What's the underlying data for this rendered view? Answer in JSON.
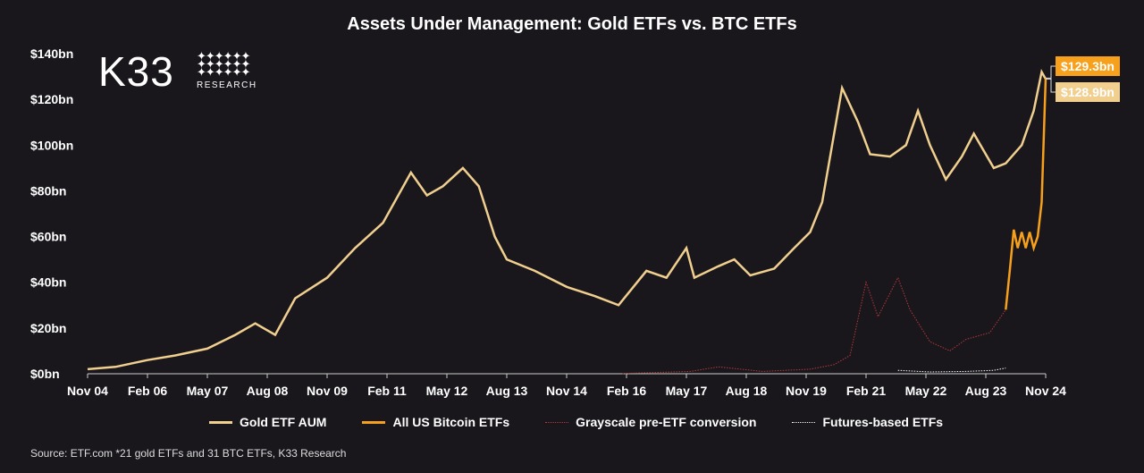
{
  "title": "Assets Under Management: Gold ETFs vs. BTC ETFs",
  "logo": {
    "text": "K33",
    "sub": "RESEARCH"
  },
  "source": "Source: ETF.com *21 gold ETFs and 31 BTC ETFs, K33 Research",
  "chart_data": {
    "type": "line",
    "title": "Assets Under Management: Gold ETFs vs. BTC ETFs",
    "ylim": [
      0,
      140
    ],
    "yticks": [
      "$0bn",
      "$20bn",
      "$40bn",
      "$60bn",
      "$80bn",
      "$100bn",
      "$120bn",
      "$140bn"
    ],
    "xticks": [
      "Nov 04",
      "Feb 06",
      "May 07",
      "Aug 08",
      "Nov 09",
      "Feb 11",
      "May 12",
      "Aug 13",
      "Nov 14",
      "Feb 16",
      "May 17",
      "Aug 18",
      "Nov 19",
      "Feb 21",
      "May 22",
      "Aug 23",
      "Nov 24"
    ],
    "xrange": [
      "2004-11",
      "2024-11"
    ],
    "legend_position": "bottom",
    "grid": false,
    "series": [
      {
        "name": "Gold ETF AUM",
        "color": "#f0cf8f",
        "style": "solid",
        "end_label": "$128.9bn",
        "points": [
          [
            "2004-11",
            2
          ],
          [
            "2005-06",
            3
          ],
          [
            "2006-02",
            6
          ],
          [
            "2006-09",
            8
          ],
          [
            "2007-05",
            11
          ],
          [
            "2007-12",
            17
          ],
          [
            "2008-05",
            22
          ],
          [
            "2008-10",
            17
          ],
          [
            "2009-03",
            33
          ],
          [
            "2009-11",
            42
          ],
          [
            "2010-06",
            55
          ],
          [
            "2011-01",
            66
          ],
          [
            "2011-08",
            88
          ],
          [
            "2011-12",
            78
          ],
          [
            "2012-04",
            82
          ],
          [
            "2012-09",
            90
          ],
          [
            "2013-01",
            82
          ],
          [
            "2013-05",
            60
          ],
          [
            "2013-08",
            50
          ],
          [
            "2014-03",
            45
          ],
          [
            "2014-11",
            38
          ],
          [
            "2015-06",
            34
          ],
          [
            "2015-12",
            30
          ],
          [
            "2016-07",
            45
          ],
          [
            "2016-12",
            42
          ],
          [
            "2017-05",
            55
          ],
          [
            "2017-07",
            42
          ],
          [
            "2018-01",
            47
          ],
          [
            "2018-05",
            50
          ],
          [
            "2018-09",
            43
          ],
          [
            "2019-03",
            46
          ],
          [
            "2019-08",
            55
          ],
          [
            "2019-12",
            62
          ],
          [
            "2020-03",
            75
          ],
          [
            "2020-08",
            125
          ],
          [
            "2020-12",
            110
          ],
          [
            "2021-03",
            96
          ],
          [
            "2021-08",
            95
          ],
          [
            "2021-12",
            100
          ],
          [
            "2022-03",
            115
          ],
          [
            "2022-06",
            100
          ],
          [
            "2022-10",
            85
          ],
          [
            "2023-02",
            95
          ],
          [
            "2023-05",
            105
          ],
          [
            "2023-10",
            90
          ],
          [
            "2024-01",
            92
          ],
          [
            "2024-05",
            100
          ],
          [
            "2024-08",
            115
          ],
          [
            "2024-10",
            132
          ],
          [
            "2024-11",
            128.9
          ]
        ]
      },
      {
        "name": "All US Bitcoin ETFs",
        "color": "#f7a01c",
        "style": "solid",
        "end_label": "$129.3bn",
        "points": [
          [
            "2024-01",
            28
          ],
          [
            "2024-02",
            45
          ],
          [
            "2024-03",
            63
          ],
          [
            "2024-04",
            55
          ],
          [
            "2024-05",
            62
          ],
          [
            "2024-06",
            55
          ],
          [
            "2024-07",
            62
          ],
          [
            "2024-08",
            55
          ],
          [
            "2024-09",
            60
          ],
          [
            "2024-10",
            75
          ],
          [
            "2024-11",
            129.3
          ]
        ]
      },
      {
        "name": "Grayscale pre-ETF conversion",
        "color": "#b33a3a",
        "style": "dotted",
        "points": [
          [
            "2016-01",
            0.1
          ],
          [
            "2017-06",
            1
          ],
          [
            "2018-01",
            3
          ],
          [
            "2018-12",
            1
          ],
          [
            "2019-12",
            2
          ],
          [
            "2020-06",
            4
          ],
          [
            "2020-10",
            8
          ],
          [
            "2021-02",
            40
          ],
          [
            "2021-05",
            25
          ],
          [
            "2021-10",
            42
          ],
          [
            "2022-01",
            28
          ],
          [
            "2022-06",
            14
          ],
          [
            "2022-11",
            10
          ],
          [
            "2023-03",
            15
          ],
          [
            "2023-09",
            18
          ],
          [
            "2024-01",
            28
          ]
        ]
      },
      {
        "name": "Futures-based ETFs",
        "color": "#ffffff",
        "style": "dotted",
        "points": [
          [
            "2021-10",
            1.5
          ],
          [
            "2022-06",
            0.8
          ],
          [
            "2023-03",
            1
          ],
          [
            "2023-10",
            1.5
          ],
          [
            "2024-01",
            2.5
          ]
        ]
      }
    ]
  }
}
